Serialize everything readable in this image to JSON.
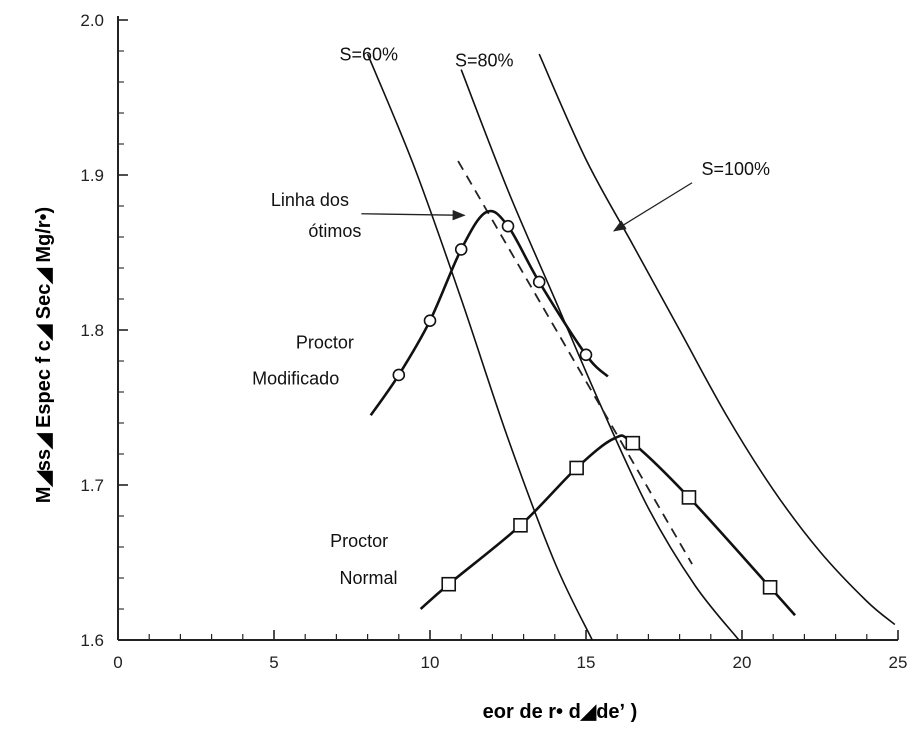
{
  "chart_data": {
    "type": "line",
    "title": "",
    "xlabel": "eor de   r• d◢deʼ  )",
    "ylabel": "M◢ss◢ Espec f c◢ Sec◢ Mg/r•)",
    "xlim": [
      0,
      25
    ],
    "ylim": [
      1.6,
      2.0
    ],
    "x_ticks": [
      "0",
      "5",
      "10",
      "15",
      "20",
      "25"
    ],
    "y_ticks": [
      "1.6",
      "1.7",
      "1.8",
      "1.9",
      "2.0"
    ],
    "grid": false,
    "series": [
      {
        "name": "Proctor Modificado",
        "marker": "circle",
        "color": "#111111",
        "points": [
          [
            9.0,
            1.771
          ],
          [
            10.0,
            1.806
          ],
          [
            11.0,
            1.852
          ],
          [
            12.5,
            1.867
          ],
          [
            13.5,
            1.831
          ],
          [
            15.0,
            1.784
          ]
        ],
        "curve": [
          [
            8.1,
            1.745
          ],
          [
            9.0,
            1.771
          ],
          [
            10.0,
            1.806
          ],
          [
            11.0,
            1.852
          ],
          [
            11.8,
            1.876
          ],
          [
            12.5,
            1.867
          ],
          [
            13.5,
            1.831
          ],
          [
            15.0,
            1.784
          ],
          [
            15.7,
            1.77
          ]
        ]
      },
      {
        "name": "Proctor Normal",
        "marker": "square",
        "color": "#111111",
        "points": [
          [
            10.6,
            1.636
          ],
          [
            12.9,
            1.674
          ],
          [
            14.7,
            1.711
          ],
          [
            16.5,
            1.727
          ],
          [
            18.3,
            1.692
          ],
          [
            20.9,
            1.634
          ]
        ],
        "curve": [
          [
            9.7,
            1.62
          ],
          [
            10.6,
            1.636
          ],
          [
            12.9,
            1.674
          ],
          [
            14.7,
            1.711
          ],
          [
            15.9,
            1.73
          ],
          [
            16.5,
            1.727
          ],
          [
            18.3,
            1.692
          ],
          [
            20.9,
            1.634
          ],
          [
            21.7,
            1.616
          ]
        ]
      }
    ],
    "saturation_curves": [
      {
        "label": "S=60%",
        "points": [
          [
            8.0,
            1.978
          ],
          [
            9.5,
            1.905
          ],
          [
            11.0,
            1.82
          ],
          [
            12.5,
            1.73
          ],
          [
            14.0,
            1.65
          ],
          [
            15.2,
            1.6
          ]
        ]
      },
      {
        "label": "S=80%",
        "points": [
          [
            11.0,
            1.968
          ],
          [
            12.5,
            1.89
          ],
          [
            14.0,
            1.82
          ],
          [
            15.5,
            1.75
          ],
          [
            17.0,
            1.685
          ],
          [
            18.5,
            1.635
          ],
          [
            19.9,
            1.6
          ]
        ]
      },
      {
        "label": "S=100%",
        "points": [
          [
            13.5,
            1.978
          ],
          [
            15.0,
            1.91
          ],
          [
            16.5,
            1.855
          ],
          [
            18.0,
            1.8
          ],
          [
            19.5,
            1.745
          ],
          [
            21.0,
            1.697
          ],
          [
            22.5,
            1.657
          ],
          [
            24.0,
            1.625
          ],
          [
            24.9,
            1.61
          ]
        ]
      }
    ],
    "optimum_line": {
      "label": "Linha dos ótimos",
      "points": [
        [
          10.9,
          1.909
        ],
        [
          18.4,
          1.649
        ]
      ],
      "style": "dashed"
    },
    "annotations": [
      {
        "text": "S=60%",
        "x": 7.1,
        "y": 1.974
      },
      {
        "text": "S=80%",
        "x": 10.8,
        "y": 1.97
      },
      {
        "text": "S=100%",
        "x": 18.7,
        "y": 1.9
      },
      {
        "text": "Linha dos",
        "x": 4.9,
        "y": 1.88
      },
      {
        "text": "ótimos",
        "x": 6.1,
        "y": 1.86
      },
      {
        "text": "Proctor",
        "x": 5.7,
        "y": 1.788
      },
      {
        "text": "Modificado",
        "x": 4.3,
        "y": 1.765
      },
      {
        "text": "Proctor",
        "x": 6.8,
        "y": 1.66
      },
      {
        "text": "Normal",
        "x": 7.1,
        "y": 1.636
      }
    ],
    "arrows": [
      {
        "from": [
          7.8,
          1.875
        ],
        "to": [
          11.1,
          1.874
        ]
      },
      {
        "from": [
          18.4,
          1.895
        ],
        "to": [
          15.9,
          1.864
        ]
      }
    ]
  }
}
